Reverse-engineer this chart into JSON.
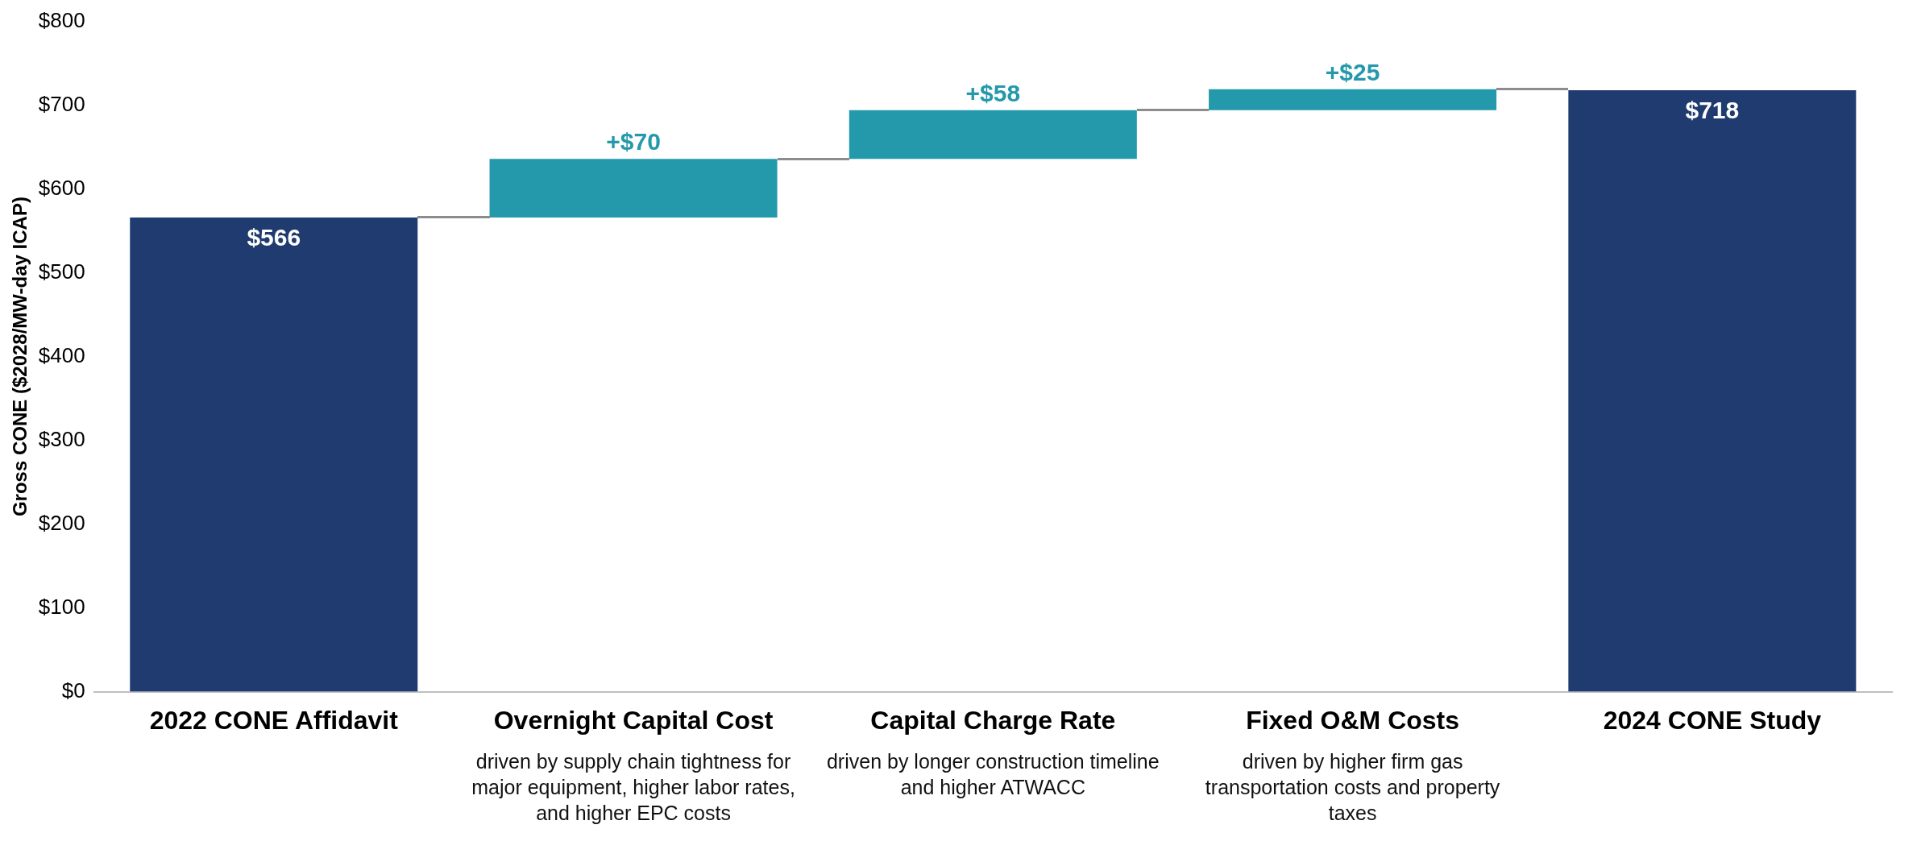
{
  "chart_data": {
    "type": "bar",
    "ylabel": "Gross CONE ($2028/MW-day ICAP)",
    "categories": [
      "2022 CONE Affidavit",
      "Overnight Capital Cost",
      "Capital Charge Rate",
      "Fixed O&M Costs",
      "2024 CONE Study"
    ],
    "values": [
      566,
      70,
      58,
      25,
      718
    ],
    "base": [
      0,
      566,
      636,
      694,
      0
    ],
    "colors": [
      "#1f3b6f",
      "#2499ab",
      "#2499ab",
      "#2499ab",
      "#1f3b6f"
    ],
    "value_labels": [
      "$566",
      "+$70",
      "+$58",
      "+$25",
      "$718"
    ],
    "ylim": [
      0,
      800
    ],
    "yticks": [
      {
        "value": 0,
        "label": "$0"
      },
      {
        "value": 100,
        "label": "$100"
      },
      {
        "value": 200,
        "label": "$200"
      },
      {
        "value": 300,
        "label": "$300"
      },
      {
        "value": 400,
        "label": "$400"
      },
      {
        "value": 500,
        "label": "$500"
      },
      {
        "value": 600,
        "label": "$600"
      },
      {
        "value": 700,
        "label": "$700"
      },
      {
        "value": 800,
        "label": "$800"
      }
    ],
    "grid": false,
    "legend": false,
    "annotations": [
      "driven by supply chain tightness for major equipment, higher labor rates, and higher EPC costs",
      "driven by longer construction timeline and higher ATWACC",
      "driven by higher firm gas transportation costs and property taxes"
    ]
  }
}
